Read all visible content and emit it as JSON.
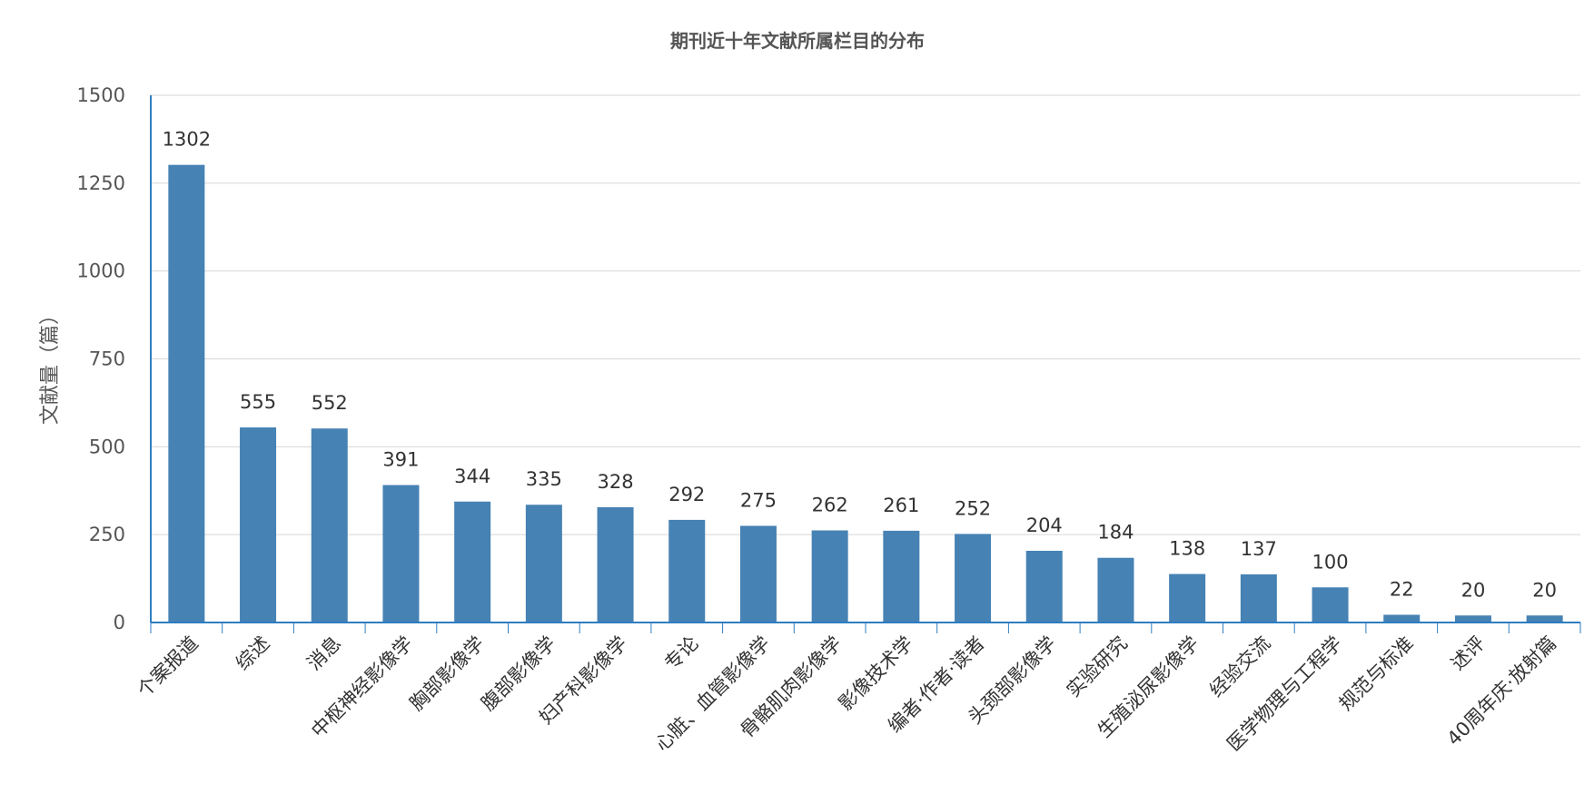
{
  "chart_data": {
    "type": "bar",
    "title": "期刊近十年文献所属栏目的分布",
    "xlabel": "",
    "ylabel": "文献量（篇）",
    "ylim": [
      0,
      1500
    ],
    "yticks": [
      0,
      250,
      500,
      750,
      1000,
      1250,
      1500
    ],
    "grid": true,
    "legend": "none",
    "color": "#4682b4",
    "categories": [
      "个案报道",
      "综述",
      "消息",
      "中枢神经影像学",
      "胸部影像学",
      "腹部影像学",
      "妇产科影像学",
      "专论",
      "心脏、血管影像学",
      "骨骼肌肉影像学",
      "影像技术学",
      "编者·作者·读者",
      "头颈部影像学",
      "实验研究",
      "生殖泌尿影像学",
      "经验交流",
      "医学物理与工程学",
      "规范与标准",
      "述评",
      "40周年庆·放射篇"
    ],
    "values": [
      1302,
      555,
      552,
      391,
      344,
      335,
      328,
      292,
      275,
      262,
      261,
      252,
      204,
      184,
      138,
      137,
      100,
      22,
      20,
      20
    ]
  }
}
